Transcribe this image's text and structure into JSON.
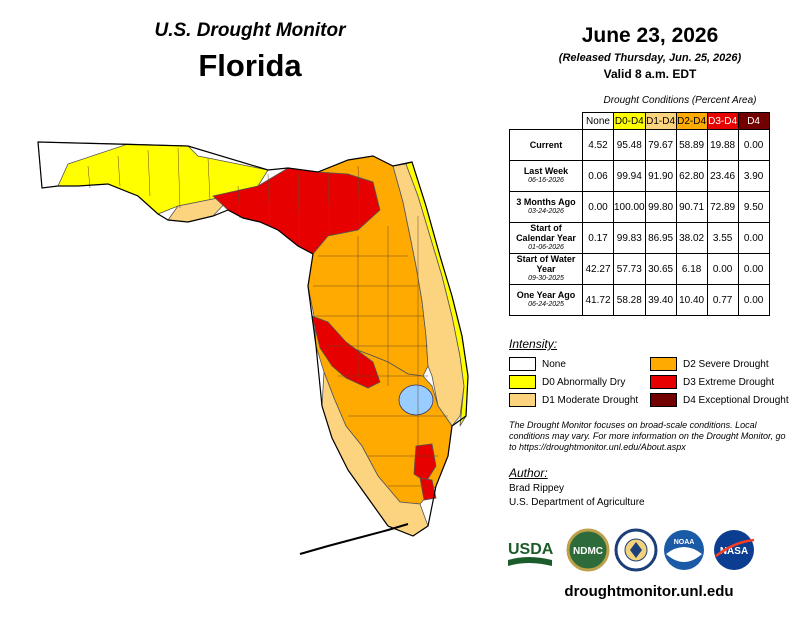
{
  "header": {
    "monitor_title": "U.S. Drought Monitor",
    "state": "Florida",
    "date": "June 23, 2026",
    "released": "(Released Thursday, Jun. 25, 2026)",
    "valid": "Valid 8 a.m. EDT"
  },
  "table": {
    "caption": "Drought Conditions (Percent Area)",
    "columns": [
      "None",
      "D0-D4",
      "D1-D4",
      "D2-D4",
      "D3-D4",
      "D4"
    ],
    "column_colors": [
      "#ffffff",
      "#ffff00",
      "#fcd37f",
      "#ffaa00",
      "#e60000",
      "#730000"
    ],
    "rows": [
      {
        "label": "Current",
        "sub": "",
        "values": [
          "4.52",
          "95.48",
          "79.67",
          "58.89",
          "19.88",
          "0.00"
        ]
      },
      {
        "label": "Last Week",
        "sub": "06-16-2026",
        "values": [
          "0.06",
          "99.94",
          "91.90",
          "62.80",
          "23.46",
          "3.90"
        ]
      },
      {
        "label": "3 Months Ago",
        "sub": "03-24-2026",
        "values": [
          "0.00",
          "100.00",
          "99.80",
          "90.71",
          "72.89",
          "9.50"
        ]
      },
      {
        "label": "Start of Calendar Year",
        "sub": "01-06-2026",
        "values": [
          "0.17",
          "99.83",
          "86.95",
          "38.02",
          "3.55",
          "0.00"
        ]
      },
      {
        "label": "Start of Water Year",
        "sub": "09-30-2025",
        "values": [
          "42.27",
          "57.73",
          "30.65",
          "6.18",
          "0.00",
          "0.00"
        ]
      },
      {
        "label": "One Year Ago",
        "sub": "06-24-2025",
        "values": [
          "41.72",
          "58.28",
          "39.40",
          "10.40",
          "0.77",
          "0.00"
        ]
      }
    ]
  },
  "legend": {
    "title": "Intensity:",
    "items": [
      {
        "label": "None",
        "color": "#ffffff"
      },
      {
        "label": "D0 Abnormally Dry",
        "color": "#ffff00"
      },
      {
        "label": "D1 Moderate Drought",
        "color": "#fcd37f"
      },
      {
        "label": "D2 Severe Drought",
        "color": "#ffaa00"
      },
      {
        "label": "D3 Extreme Drought",
        "color": "#e60000"
      },
      {
        "label": "D4 Exceptional Drought",
        "color": "#730000"
      }
    ]
  },
  "disclaimer": "The Drought Monitor focuses on broad-scale conditions. Local conditions may vary. For more information on the Drought Monitor, go to https://droughtmonitor.unl.edu/About.aspx",
  "author": {
    "title": "Author:",
    "name": "Brad Rippey",
    "org": "U.S. Department of Agriculture"
  },
  "logos": {
    "usda": "USDA",
    "ndmc": "NDMC",
    "noaa": "NOAA",
    "nasa": "NASA"
  },
  "site_url": "droughtmonitor.unl.edu"
}
